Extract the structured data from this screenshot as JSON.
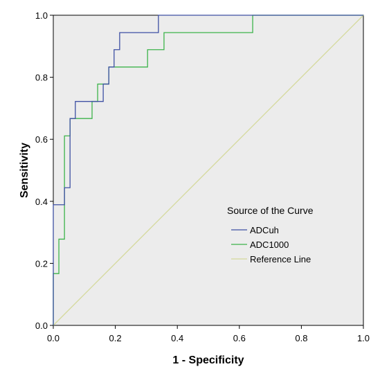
{
  "chart_data": {
    "type": "line",
    "xlabel": "1 - Specificity",
    "ylabel": "Sensitivity",
    "xlim": [
      0,
      1
    ],
    "ylim": [
      0,
      1
    ],
    "xticks": [
      "0.0",
      "0.2",
      "0.4",
      "0.6",
      "0.8",
      "1.0"
    ],
    "yticks": [
      "0.0",
      "0.2",
      "0.4",
      "0.6",
      "0.8",
      "1.0"
    ],
    "grid": false,
    "legend": {
      "title": "Source of the Curve",
      "placement": "right-middle"
    },
    "plot_background": "#ececec",
    "series": [
      {
        "name": "ADCuh",
        "color": "#3d4fa3",
        "x": [
          0,
          0,
          0.036,
          0.036,
          0.054,
          0.054,
          0.071,
          0.071,
          0.161,
          0.161,
          0.179,
          0.179,
          0.196,
          0.196,
          0.214,
          0.214,
          0.339,
          0.339,
          1.0
        ],
        "y": [
          0,
          0.389,
          0.389,
          0.444,
          0.444,
          0.667,
          0.667,
          0.722,
          0.722,
          0.778,
          0.778,
          0.833,
          0.833,
          0.889,
          0.889,
          0.944,
          0.944,
          1.0,
          1.0
        ]
      },
      {
        "name": "ADC1000",
        "color": "#3cb34a",
        "x": [
          0,
          0,
          0.018,
          0.018,
          0.036,
          0.036,
          0.054,
          0.054,
          0.125,
          0.125,
          0.143,
          0.143,
          0.179,
          0.179,
          0.304,
          0.304,
          0.357,
          0.357,
          0.643,
          0.643,
          1.0
        ],
        "y": [
          0,
          0.167,
          0.167,
          0.278,
          0.278,
          0.611,
          0.611,
          0.667,
          0.667,
          0.722,
          0.722,
          0.778,
          0.778,
          0.833,
          0.833,
          0.889,
          0.889,
          0.944,
          0.944,
          1.0,
          1.0
        ]
      },
      {
        "name": "Reference Line",
        "color": "#d4d99a",
        "x": [
          0,
          1
        ],
        "y": [
          0,
          1
        ]
      }
    ]
  }
}
